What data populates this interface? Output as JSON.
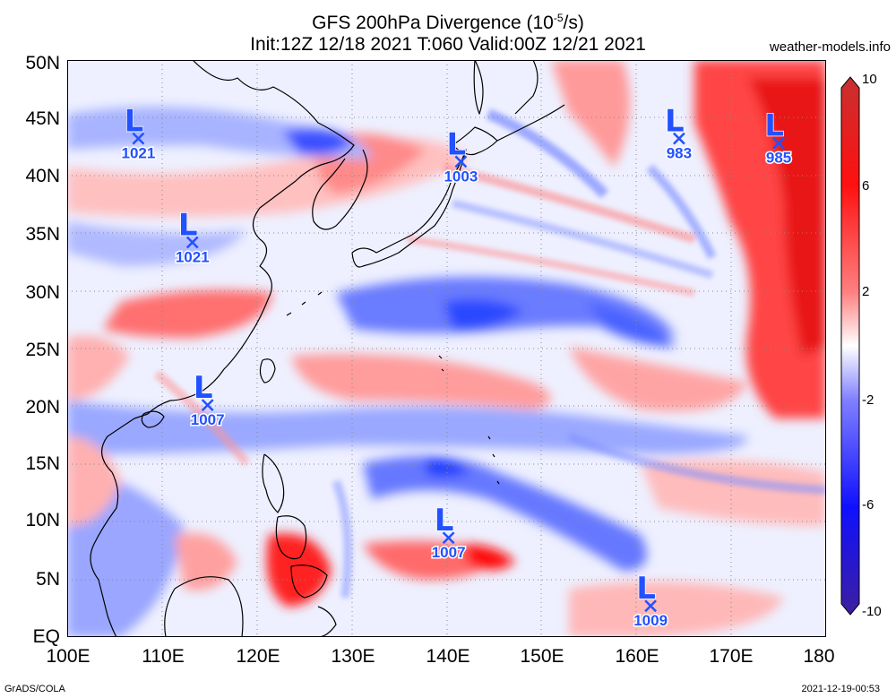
{
  "header": {
    "title": "GFS 200hPa Divergence (10",
    "exponent": "-5",
    "title_end": "/s)",
    "subtitle": "Init:12Z 12/18 2021 T:060 Valid:00Z 12/21 2021",
    "site": "weather-models.info"
  },
  "axes": {
    "lat_labels": [
      "50N",
      "45N",
      "40N",
      "35N",
      "30N",
      "25N",
      "20N",
      "15N",
      "10N",
      "5N",
      "EQ"
    ],
    "lon_labels": [
      "100E",
      "110E",
      "120E",
      "130E",
      "140E",
      "150E",
      "160E",
      "170E",
      "180"
    ]
  },
  "colorbar": {
    "labels": [
      "10",
      "6",
      "2",
      "-2",
      "-6",
      "-10"
    ],
    "colors": [
      "#c83030",
      "#ff1010",
      "#ff8080",
      "#ffffff",
      "#8080ff",
      "#1010ff",
      "#3d1fa0"
    ]
  },
  "lows": [
    {
      "pressure": "1021",
      "lon": 107.5,
      "lat": 43.2
    },
    {
      "pressure": "1021",
      "lon": 113.2,
      "lat": 34.2
    },
    {
      "pressure": "1007",
      "lon": 114.8,
      "lat": 20.1
    },
    {
      "pressure": "1003",
      "lon": 141.5,
      "lat": 41.2
    },
    {
      "pressure": "983",
      "lon": 164.5,
      "lat": 43.2
    },
    {
      "pressure": "985",
      "lon": 175.0,
      "lat": 42.8
    },
    {
      "pressure": "1007",
      "lon": 140.2,
      "lat": 8.6
    },
    {
      "pressure": "1009",
      "lon": 161.5,
      "lat": 2.7
    }
  ],
  "footer": {
    "left": "GrADS/COLA",
    "right": "2021-12-19-00:53"
  }
}
